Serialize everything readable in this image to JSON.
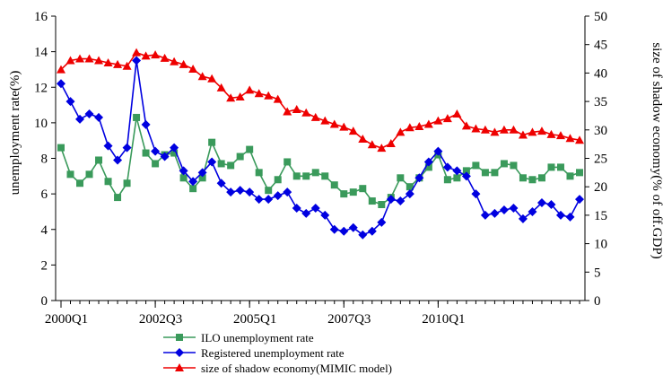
{
  "chart_data": {
    "type": "line",
    "xlabel": "",
    "ylabel": "unemployment rate(%)",
    "y2label": "size of shadow economy(% of off.GDP)",
    "ylim": [
      0,
      16
    ],
    "y2lim": [
      0,
      50
    ],
    "yticks": [
      "0",
      "2",
      "4",
      "6",
      "8",
      "10",
      "12",
      "14",
      "16"
    ],
    "y2ticks": [
      "0",
      "5",
      "10",
      "15",
      "20",
      "25",
      "30",
      "35",
      "40",
      "45",
      "50"
    ],
    "xticks": [
      {
        "label": "2000Q1",
        "index": 0
      },
      {
        "label": "2002Q3",
        "index": 10
      },
      {
        "label": "2005Q1",
        "index": 20
      },
      {
        "label": "2007Q3",
        "index": 30
      },
      {
        "label": "2010Q1",
        "index": 40
      }
    ],
    "legend_position": "bottom",
    "series": [
      {
        "name": "ILO unemployment rate",
        "axis": "left",
        "color": "#3a9a5b",
        "marker": "square",
        "values": [
          8.6,
          7.1,
          6.6,
          7.1,
          7.9,
          6.7,
          5.8,
          6.6,
          10.3,
          8.3,
          7.7,
          8.2,
          8.3,
          6.9,
          6.3,
          6.9,
          8.9,
          7.7,
          7.6,
          8.1,
          8.5,
          7.2,
          6.2,
          6.8,
          7.8,
          7.0,
          7.0,
          7.2,
          7.0,
          6.5,
          6.0,
          6.1,
          6.3,
          5.6,
          5.4,
          5.8,
          6.9,
          6.4,
          6.9,
          7.5,
          8.2,
          6.8,
          6.9,
          7.3,
          7.6,
          7.2,
          7.2,
          7.7,
          7.6,
          6.9,
          6.8,
          6.9,
          7.5,
          7.5,
          7.0,
          7.2
        ]
      },
      {
        "name": "Registered unemployment rate",
        "axis": "left",
        "color": "#0000e0",
        "marker": "diamond",
        "values": [
          12.2,
          11.2,
          10.2,
          10.5,
          10.3,
          8.7,
          7.9,
          8.6,
          13.5,
          9.9,
          8.4,
          8.1,
          8.6,
          7.3,
          6.7,
          7.2,
          7.8,
          6.6,
          6.1,
          6.2,
          6.1,
          5.7,
          5.7,
          5.9,
          6.1,
          5.2,
          4.9,
          5.2,
          4.8,
          4.0,
          3.9,
          4.1,
          3.7,
          3.9,
          4.4,
          5.7,
          5.6,
          6.0,
          6.9,
          7.8,
          8.4,
          7.5,
          7.3,
          7.0,
          6.0,
          4.8,
          4.9,
          5.1,
          5.2,
          4.6,
          5.0,
          5.5,
          5.4,
          4.8,
          4.7,
          5.7
        ]
      },
      {
        "name": "size of shadow economy(MIMIC model)",
        "axis": "right",
        "color": "#ee0000",
        "marker": "triangle",
        "values": [
          40.6,
          42.2,
          42.5,
          42.5,
          42.2,
          41.8,
          41.5,
          41.2,
          43.6,
          43.0,
          43.2,
          42.6,
          42.0,
          41.5,
          40.7,
          39.4,
          39.0,
          37.4,
          35.6,
          35.8,
          37.0,
          36.4,
          36.0,
          35.4,
          33.2,
          33.6,
          33.0,
          32.2,
          31.6,
          31.0,
          30.5,
          29.8,
          28.4,
          27.4,
          26.8,
          27.6,
          29.6,
          30.4,
          30.6,
          31.0,
          31.6,
          32.0,
          32.8,
          30.7,
          30.2,
          30.0,
          29.6,
          30.0,
          30.0,
          29.1,
          29.6,
          29.8,
          29.2,
          29.0,
          28.5,
          28.2
        ]
      }
    ]
  }
}
